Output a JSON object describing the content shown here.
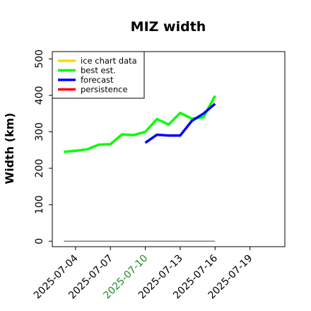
{
  "chart_data": {
    "type": "line",
    "title": "MIZ width",
    "xlabel": "",
    "ylabel": "Width (km)",
    "ylim": [
      -15,
      520
    ],
    "xlim": [
      "2025-07-02",
      "2025-07-22"
    ],
    "y_ticks": [
      0,
      100,
      200,
      300,
      400,
      500
    ],
    "x_ticks": [
      "2025-07-04",
      "2025-07-07",
      "2025-07-10",
      "2025-07-13",
      "2025-07-16",
      "2025-07-19"
    ],
    "highlighted_x_tick": "2025-07-10",
    "highlight_color": "#228B22",
    "legend_position": "upper-left",
    "grid": false,
    "series": [
      {
        "name": "ice chart data",
        "color": "#FFD700",
        "x": [],
        "y": []
      },
      {
        "name": "best est.",
        "color": "#00FF00",
        "x": [
          "2025-07-03",
          "2025-07-04",
          "2025-07-05",
          "2025-07-06",
          "2025-07-07",
          "2025-07-08",
          "2025-07-09",
          "2025-07-10",
          "2025-07-11",
          "2025-07-12",
          "2025-07-13",
          "2025-07-14",
          "2025-07-15",
          "2025-07-16"
        ],
        "y": [
          245,
          248,
          252,
          265,
          266,
          293,
          291,
          300,
          335,
          320,
          352,
          336,
          340,
          399
        ]
      },
      {
        "name": "forecast",
        "color": "#0000FF",
        "x": [
          "2025-07-10",
          "2025-07-11",
          "2025-07-12",
          "2025-07-13",
          "2025-07-14",
          "2025-07-15",
          "2025-07-16"
        ],
        "y": [
          270,
          292,
          290,
          290,
          330,
          350,
          377
        ]
      },
      {
        "name": "persistence",
        "color": "#FF0000",
        "x": [],
        "y": []
      }
    ],
    "reference_line": {
      "color": "#808080",
      "x": [
        "2025-07-03",
        "2025-07-16"
      ],
      "y": [
        0,
        0
      ]
    }
  }
}
